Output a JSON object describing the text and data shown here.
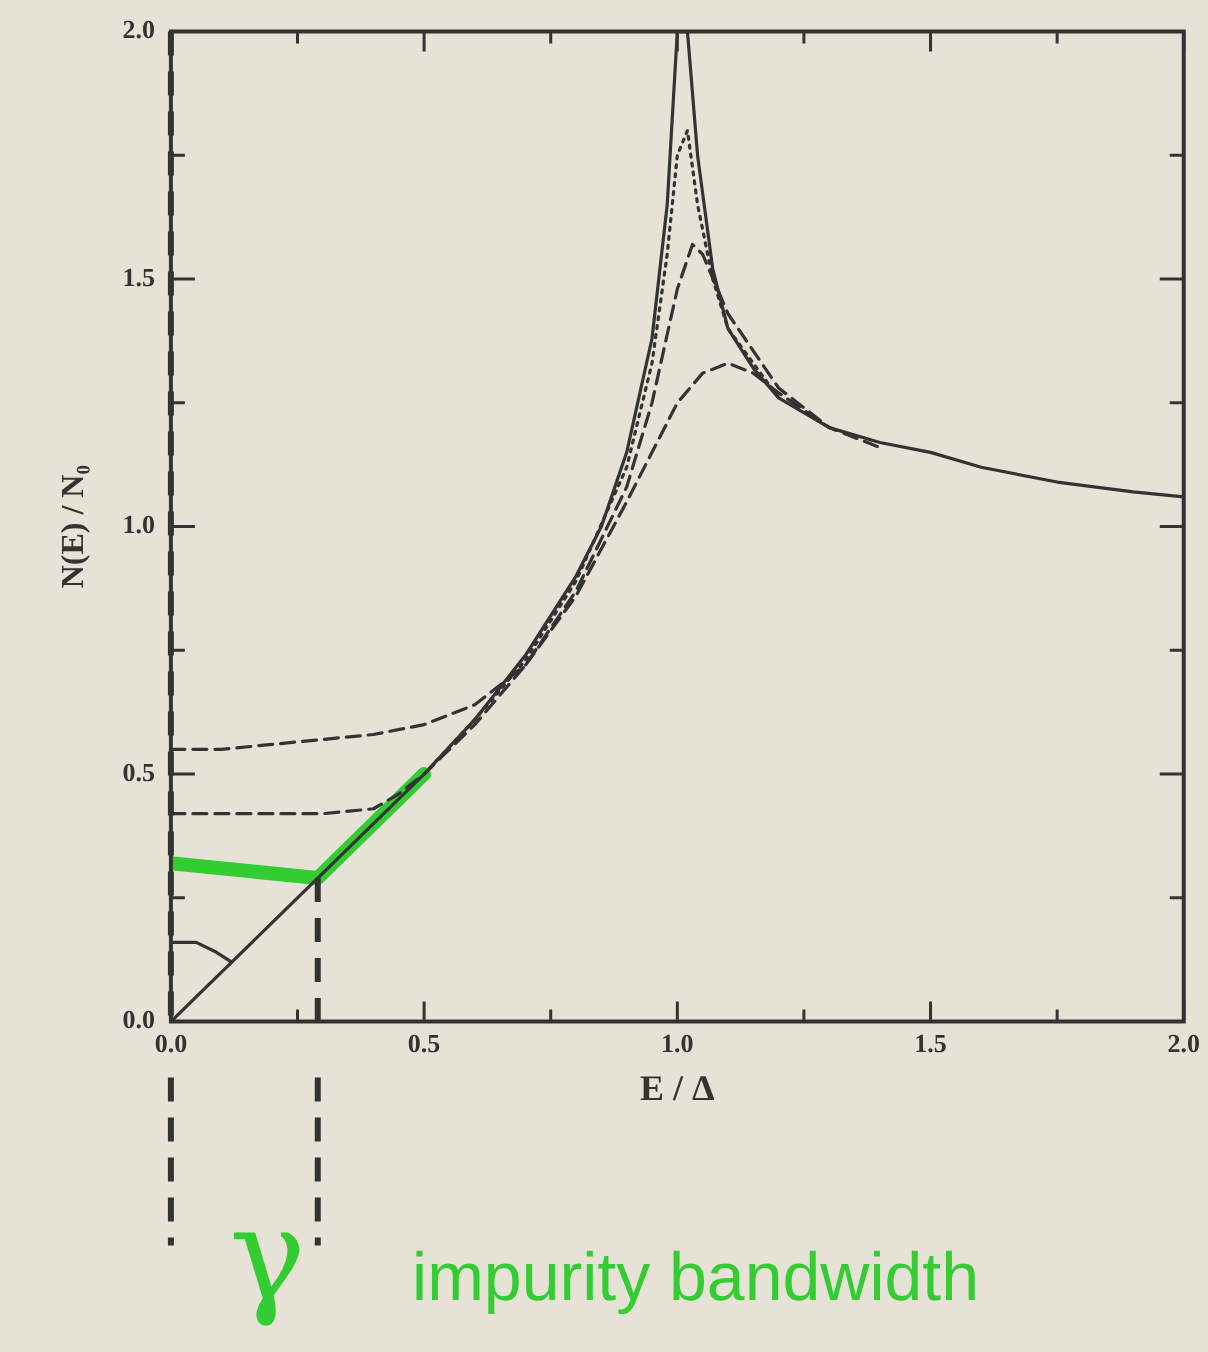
{
  "chart_data": {
    "type": "line",
    "xlabel": "E / Δ",
    "ylabel": "N(E) / N₀",
    "xlim": [
      0,
      2
    ],
    "ylim": [
      0,
      2
    ],
    "xticks": [
      {
        "value": 0,
        "label": "0.0"
      },
      {
        "value": 0.25,
        "label": null
      },
      {
        "value": 0.5,
        "label": "0.5"
      },
      {
        "value": 0.75,
        "label": null
      },
      {
        "value": 1,
        "label": "1.0"
      },
      {
        "value": 1.25,
        "label": null
      },
      {
        "value": 1.5,
        "label": "1.5"
      },
      {
        "value": 1.75,
        "label": null
      },
      {
        "value": 2,
        "label": "2.0"
      }
    ],
    "yticks": [
      {
        "value": 0,
        "label": "0.0"
      },
      {
        "value": 0.25,
        "label": null
      },
      {
        "value": 0.5,
        "label": "0.5"
      },
      {
        "value": 0.75,
        "label": null
      },
      {
        "value": 1,
        "label": "1.0"
      },
      {
        "value": 1.25,
        "label": null
      },
      {
        "value": 1.5,
        "label": "1.5"
      },
      {
        "value": 1.75,
        "label": null
      },
      {
        "value": 2,
        "label": "2.0"
      }
    ],
    "grid": false,
    "legend": false,
    "marker": "none",
    "series": [
      {
        "color": "#333333",
        "line_style": "solid",
        "x": [
          0,
          0.1,
          0.2,
          0.3,
          0.4,
          0.5,
          0.6,
          0.7,
          0.8,
          0.85,
          0.9,
          0.95,
          0.98,
          1.0,
          1.02,
          1.04,
          1.07,
          1.1,
          1.15,
          1.2,
          1.3,
          1.4,
          1.5,
          1.6,
          1.75,
          1.9,
          2.0
        ],
        "values": [
          0,
          0.1,
          0.2,
          0.3,
          0.4,
          0.5,
          0.61,
          0.74,
          0.9,
          1.0,
          1.15,
          1.38,
          1.65,
          2.0,
          2.0,
          1.75,
          1.52,
          1.4,
          1.32,
          1.26,
          1.2,
          1.17,
          1.15,
          1.12,
          1.09,
          1.07,
          1.06
        ]
      },
      {
        "color": "#333333",
        "line_style": "dotted",
        "x": [
          0.5,
          0.6,
          0.7,
          0.8,
          0.9,
          0.95,
          0.98,
          1.0,
          1.02,
          1.04,
          1.07,
          1.1,
          1.2
        ],
        "values": [
          0.5,
          0.61,
          0.73,
          0.89,
          1.12,
          1.33,
          1.55,
          1.75,
          1.8,
          1.65,
          1.5,
          1.4,
          1.26
        ]
      },
      {
        "color": "#333333",
        "line_style": "dashed",
        "x": [
          0,
          0.1,
          0.2,
          0.3,
          0.4,
          0.45,
          0.5,
          0.6,
          0.7,
          0.8,
          0.9,
          0.95,
          1.0,
          1.03,
          1.05,
          1.1,
          1.2,
          1.3
        ],
        "values": [
          0.42,
          0.42,
          0.42,
          0.42,
          0.43,
          0.46,
          0.5,
          0.6,
          0.72,
          0.87,
          1.08,
          1.25,
          1.48,
          1.57,
          1.55,
          1.43,
          1.28,
          1.2
        ]
      },
      {
        "color": "#333333",
        "line_style": "dashed",
        "x": [
          0,
          0.1,
          0.2,
          0.3,
          0.4,
          0.5,
          0.55,
          0.6,
          0.7,
          0.8,
          0.9,
          1.0,
          1.05,
          1.1,
          1.15,
          1.2,
          1.3,
          1.4
        ],
        "values": [
          0.55,
          0.55,
          0.56,
          0.57,
          0.58,
          0.6,
          0.62,
          0.64,
          0.72,
          0.86,
          1.05,
          1.25,
          1.31,
          1.33,
          1.31,
          1.27,
          1.2,
          1.16
        ]
      },
      {
        "color": "#33cc33",
        "line_style": "solid",
        "x": [
          0,
          0.29,
          0.5
        ],
        "values": [
          0.32,
          0.29,
          0.5
        ]
      },
      {
        "color": "#333333",
        "line_style": "solid",
        "x": [
          0,
          0.05,
          0.09,
          0.12
        ],
        "values": [
          0.16,
          0.16,
          0.14,
          0.12
        ]
      }
    ],
    "ref_lines": [
      {
        "axis": "x",
        "value": 0,
        "label": null,
        "color": "#333333",
        "line_style": "dashed"
      },
      {
        "axis": "x",
        "value": 0.29,
        "label": "γ",
        "color": "#333333",
        "line_style": "dashed"
      }
    ],
    "annotations": [
      "impurity bandwidth"
    ]
  }
}
